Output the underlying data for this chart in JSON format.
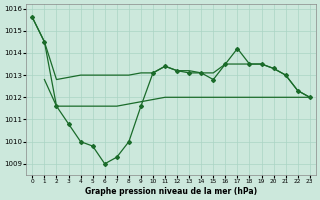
{
  "title": "Graphe pression niveau de la mer (hPa)",
  "background_color": "#cce8dc",
  "grid_color": "#aad4c4",
  "line_color": "#1a6b2a",
  "xlim": [
    -0.5,
    23.5
  ],
  "ylim": [
    1008.5,
    1016.2
  ],
  "yticks": [
    1009,
    1010,
    1011,
    1012,
    1013,
    1014,
    1015,
    1016
  ],
  "xticks": [
    0,
    1,
    2,
    3,
    4,
    5,
    6,
    7,
    8,
    9,
    10,
    11,
    12,
    13,
    14,
    15,
    16,
    17,
    18,
    19,
    20,
    21,
    22,
    23
  ],
  "series1": [
    1015.6,
    1014.5,
    1012.8,
    1012.9,
    1013.0,
    1013.0,
    1013.0,
    1013.0,
    1013.0,
    1013.1,
    1013.1,
    1013.4,
    1013.2,
    1013.2,
    1013.1,
    1013.1,
    1013.5,
    1013.5,
    1013.5,
    1013.5,
    1013.3,
    1013.0,
    1012.3,
    1012.0
  ],
  "series2": [
    1015.6,
    1014.5,
    1011.6,
    1010.8,
    1010.0,
    1009.8,
    1009.0,
    1009.3,
    1010.0,
    1011.6,
    1013.1,
    1013.4,
    1013.2,
    1013.1,
    1013.1,
    1012.8,
    1013.5,
    1014.2,
    1013.5,
    1013.5,
    1013.3,
    1013.0,
    1012.3,
    1012.0
  ],
  "series3": [
    null,
    1012.8,
    1011.6,
    1011.6,
    1011.6,
    1011.6,
    1011.6,
    1011.6,
    1011.7,
    1011.8,
    1011.9,
    1012.0,
    1012.0,
    1012.0,
    1012.0,
    1012.0,
    1012.0,
    1012.0,
    1012.0,
    1012.0,
    1012.0,
    1012.0,
    1012.0,
    1012.0
  ]
}
